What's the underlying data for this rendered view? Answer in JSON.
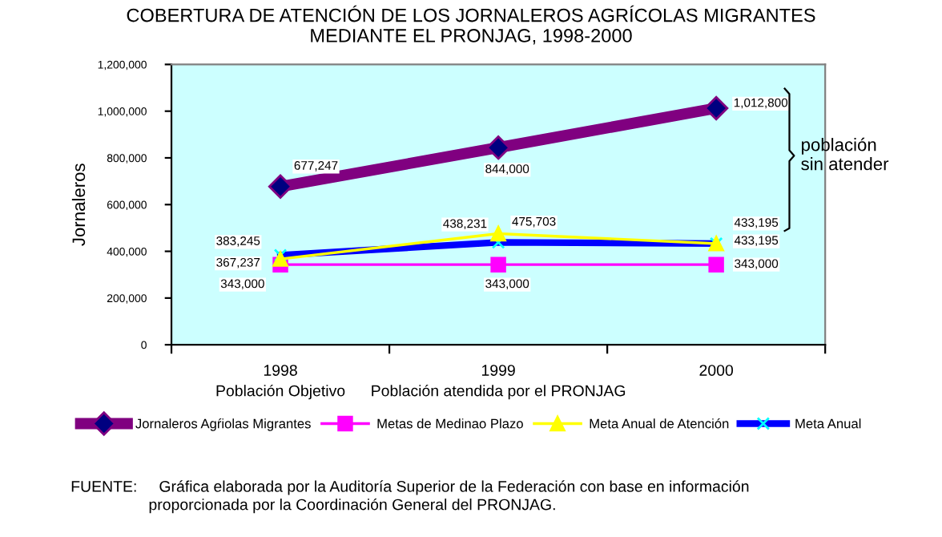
{
  "chart_data": {
    "type": "line",
    "title": "COBERTURA DE ATENCIÓN DE LOS JORNALEROS AGRÍCOLAS MIGRANTES\nMEDIANTE EL PRONJAG, 1998-2000",
    "ylabel": "Jornaleros",
    "categories": [
      "1998\nPoblación Objetivo",
      "1999\nPoblación atendida por el PRONJAG",
      "2000"
    ],
    "series": [
      {
        "name": "Jornaleros Agŕiolas Migrantes",
        "color": "#800080",
        "marker": "diamond",
        "values": [
          677247,
          844000,
          1012800
        ],
        "value_labels": [
          "677,247",
          "844,000",
          "1,012,800"
        ]
      },
      {
        "name": "Metas de Medinao Plazo",
        "color": "#ff00ff",
        "marker": "square",
        "values": [
          343000,
          343000,
          343000
        ],
        "value_labels": [
          "343,000",
          "343,000",
          "343,000"
        ]
      },
      {
        "name": "Meta Anual de Atención",
        "color": "#ffff00",
        "marker": "triangle",
        "values": [
          367237,
          475703,
          433195
        ],
        "value_labels": [
          "367,237",
          "475,703",
          "433,195"
        ]
      },
      {
        "name": "Meta Anual",
        "color": "#0000ff",
        "marker": "cross",
        "values": [
          383245,
          438231,
          433195
        ],
        "value_labels": [
          "383,245",
          "438,231",
          "433,195"
        ]
      }
    ],
    "ylim": [
      0,
      1200000
    ],
    "yticks": [
      {
        "value": 0,
        "label": "0"
      },
      {
        "value": 200000,
        "label": "200,000"
      },
      {
        "value": 400000,
        "label": "400,000"
      },
      {
        "value": 600000,
        "label": "600,000"
      },
      {
        "value": 800000,
        "label": "800,000"
      },
      {
        "value": 1000000,
        "label": "1,000,000"
      },
      {
        "value": 1200000,
        "label": "1,200,000"
      }
    ],
    "grid": false,
    "legend": "bottom",
    "annotations": [
      "población\nsin atender",
      "FUENTE:     Gráfica elaborada por la Auditoría Superior de la Federación con base en información\n                  proporcionada por la Coordinación General del PRONJAG."
    ]
  }
}
